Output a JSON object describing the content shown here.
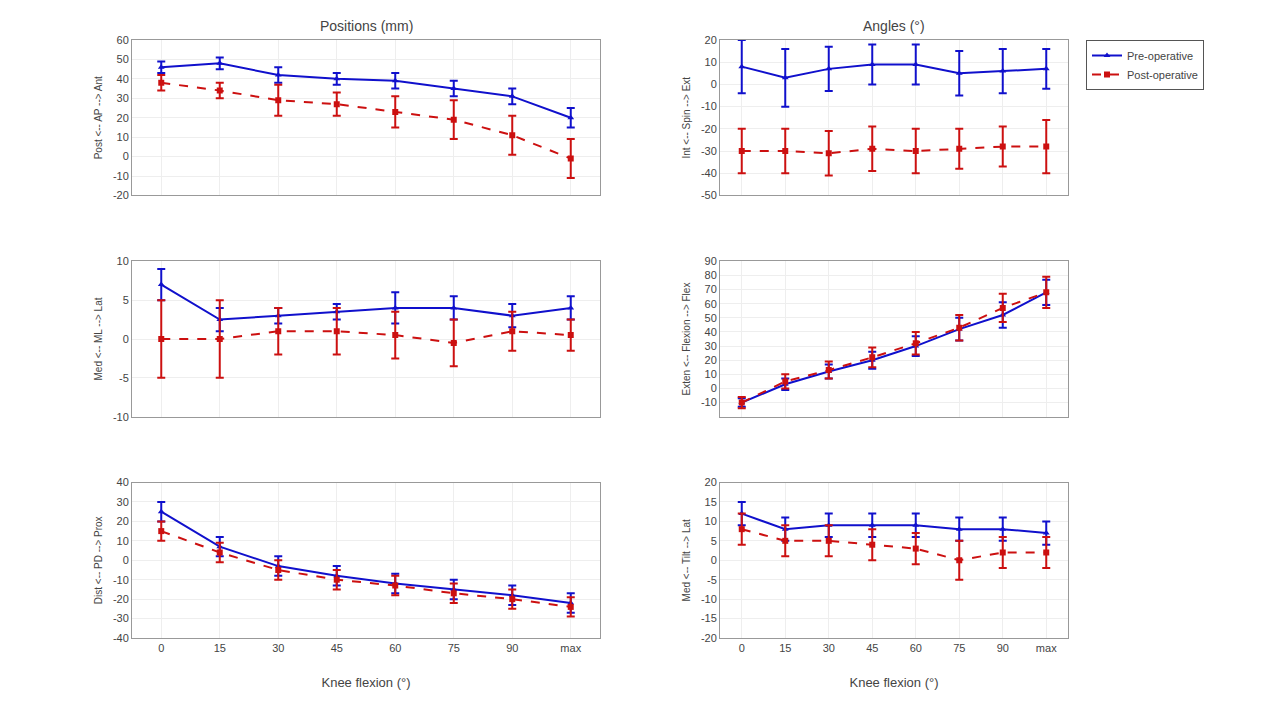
{
  "chart_data": [
    {
      "type": "line",
      "title": "Positions (mm)",
      "y_label": "Post <-- AP --> Ant",
      "categories": [
        "0",
        "15",
        "30",
        "45",
        "60",
        "75",
        "90",
        "max"
      ],
      "series": [
        {
          "name": "Pre-operative",
          "color": "#1010cc",
          "marker": "triangle-up",
          "line_style": "solid",
          "values": [
            46,
            48,
            42,
            40,
            39,
            35,
            31,
            20
          ],
          "error": [
            3,
            3,
            4,
            3,
            4,
            4,
            4,
            5
          ]
        },
        {
          "name": "Post-operative",
          "color": "#cc1010",
          "marker": "square",
          "line_style": "dashed",
          "values": [
            38,
            34,
            29,
            27,
            23,
            19,
            11,
            -1
          ],
          "error": [
            4,
            4,
            8,
            6,
            8,
            10,
            10,
            10
          ]
        }
      ],
      "ylim": [
        -20,
        60
      ],
      "yticks": [
        -20,
        -10,
        0,
        10,
        20,
        30,
        40,
        50,
        60
      ],
      "grid": true,
      "tick_labels": "y"
    },
    {
      "type": "line",
      "title": "Angles (°)",
      "y_label": "Int <-- Spin --> Ext",
      "categories": [
        "0",
        "15",
        "30",
        "45",
        "60",
        "75",
        "90",
        "max"
      ],
      "series": [
        {
          "name": "Pre-operative",
          "color": "#1010cc",
          "marker": "triangle-up",
          "line_style": "solid",
          "values": [
            8,
            3,
            7,
            9,
            9,
            5,
            6,
            7
          ],
          "error": [
            12,
            13,
            10,
            9,
            9,
            10,
            10,
            9
          ]
        },
        {
          "name": "Post-operative",
          "color": "#cc1010",
          "marker": "square",
          "line_style": "dashed",
          "values": [
            -30,
            -30,
            -31,
            -29,
            -30,
            -29,
            -28,
            -28
          ],
          "error": [
            10,
            10,
            10,
            10,
            10,
            9,
            9,
            12
          ]
        }
      ],
      "ylim": [
        -50,
        20
      ],
      "yticks": [
        -50,
        -40,
        -30,
        -20,
        -10,
        0,
        10,
        20
      ],
      "grid": true,
      "tick_labels": "y",
      "legend": "upper right"
    },
    {
      "type": "line",
      "y_label": "Med <-- ML --> Lat",
      "categories": [
        "0",
        "15",
        "30",
        "45",
        "60",
        "75",
        "90",
        "max"
      ],
      "series": [
        {
          "name": "Pre-operative",
          "color": "#1010cc",
          "marker": "triangle-up",
          "line_style": "solid",
          "values": [
            7,
            2.5,
            3.0,
            3.5,
            4.0,
            4.0,
            3.0,
            4.0
          ],
          "error": [
            2,
            1.5,
            1.0,
            1.0,
            2.0,
            1.5,
            1.5,
            1.5
          ]
        },
        {
          "name": "Post-operative",
          "color": "#cc1010",
          "marker": "square",
          "line_style": "dashed",
          "values": [
            0,
            0,
            1.0,
            1.0,
            0.5,
            -0.5,
            1.0,
            0.5
          ],
          "error": [
            5,
            5,
            3,
            3,
            3,
            3,
            2.5,
            2
          ]
        }
      ],
      "ylim": [
        -10,
        10
      ],
      "yticks": [
        -10,
        -5,
        0,
        5,
        10
      ],
      "grid": true,
      "tick_labels": "y"
    },
    {
      "type": "line",
      "y_label": "Exten <-- Flexion --> Flex",
      "categories": [
        "0",
        "15",
        "30",
        "45",
        "60",
        "75",
        "90",
        "max"
      ],
      "series": [
        {
          "name": "Pre-operative",
          "color": "#1010cc",
          "marker": "triangle-up",
          "line_style": "solid",
          "values": [
            -10,
            3,
            12,
            20,
            30,
            42,
            52,
            68
          ],
          "error": [
            3,
            4,
            5,
            6,
            7,
            8,
            9,
            9
          ]
        },
        {
          "name": "Post-operative",
          "color": "#cc1010",
          "marker": "square",
          "line_style": "dashed",
          "values": [
            -10,
            5,
            13,
            22,
            32,
            43,
            57,
            68
          ],
          "error": [
            4,
            5,
            6,
            7,
            8,
            9,
            10,
            11
          ]
        }
      ],
      "ylim": [
        -20,
        90
      ],
      "yticks": [
        -10,
        0,
        10,
        20,
        30,
        40,
        50,
        60,
        70,
        80,
        90
      ],
      "grid": true,
      "tick_labels": "y"
    },
    {
      "type": "line",
      "x_label": "Knee flexion (°)",
      "y_label": "Dist <-- PD --> Prox",
      "categories": [
        "0",
        "15",
        "30",
        "45",
        "60",
        "75",
        "90",
        "max"
      ],
      "series": [
        {
          "name": "Pre-operative",
          "color": "#1010cc",
          "marker": "triangle-up",
          "line_style": "solid",
          "values": [
            25,
            7,
            -3,
            -8,
            -12,
            -15,
            -18,
            -22
          ],
          "error": [
            5,
            5,
            5,
            5,
            5,
            5,
            5,
            5
          ]
        },
        {
          "name": "Post-operative",
          "color": "#cc1010",
          "marker": "square",
          "line_style": "dashed",
          "values": [
            15,
            4,
            -5,
            -10,
            -13,
            -17,
            -20,
            -24
          ],
          "error": [
            5,
            5,
            5,
            5,
            5,
            5,
            5,
            5
          ]
        }
      ],
      "ylim": [
        -40,
        40
      ],
      "yticks": [
        -40,
        -30,
        -20,
        -10,
        0,
        10,
        20,
        30,
        40
      ],
      "grid": true
    },
    {
      "type": "line",
      "x_label": "Knee flexion (°)",
      "y_label": "Med <-- Tilt --> Lat",
      "categories": [
        "0",
        "15",
        "30",
        "45",
        "60",
        "75",
        "90",
        "max"
      ],
      "series": [
        {
          "name": "Pre-operative",
          "color": "#1010cc",
          "marker": "triangle-up",
          "line_style": "solid",
          "values": [
            12,
            8,
            9,
            9,
            9,
            8,
            8,
            7
          ],
          "error": [
            3,
            3,
            3,
            3,
            3,
            3,
            3,
            3
          ]
        },
        {
          "name": "Post-operative",
          "color": "#cc1010",
          "marker": "square",
          "line_style": "dashed",
          "values": [
            8,
            5,
            5,
            4,
            3,
            0,
            2,
            2
          ],
          "error": [
            4,
            4,
            4,
            4,
            4,
            5,
            4,
            4
          ]
        }
      ],
      "ylim": [
        -20,
        20
      ],
      "yticks": [
        -20,
        -15,
        -10,
        -5,
        0,
        5,
        10,
        15,
        20
      ],
      "grid": true
    }
  ]
}
